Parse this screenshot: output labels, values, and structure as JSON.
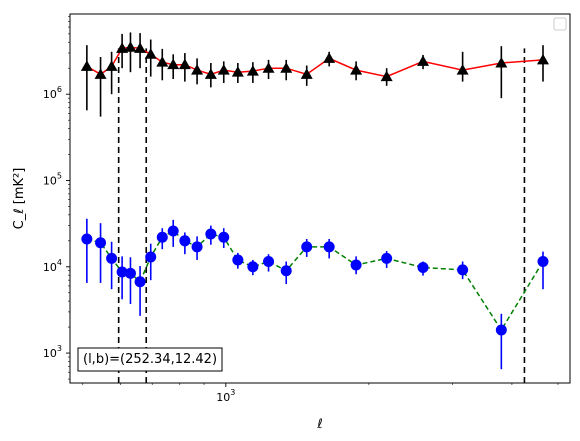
{
  "chart_data": {
    "type": "line",
    "xscale": "log",
    "yscale": "log",
    "xlim": [
      470,
      5300
    ],
    "ylim": [
      450,
      8500000
    ],
    "xlabel": "ℓ",
    "ylabel": "C_ℓ  [mK²]",
    "x_tick_labels": [
      {
        "value": 1000,
        "base": "10",
        "exp": "3"
      }
    ],
    "y_tick_labels": [
      {
        "value": 1000,
        "base": "10",
        "exp": "3"
      },
      {
        "value": 10000,
        "base": "10",
        "exp": "4"
      },
      {
        "value": 100000,
        "base": "10",
        "exp": "5"
      },
      {
        "value": 1000000,
        "base": "10",
        "exp": "6"
      }
    ],
    "legend": {
      "position": "top-right",
      "entries": []
    },
    "annotation": "(l,b)=(252.34,12.42)",
    "vlines": [
      {
        "x": 595,
        "style": "dashed"
      },
      {
        "x": 680,
        "style": "dashed"
      },
      {
        "x": 4250,
        "style": "dashed"
      }
    ],
    "series": [
      {
        "color": "#ff0000",
        "linestyle": "solid",
        "marker": "triangle",
        "marker_color": "#000000",
        "errbar_color": "#000000",
        "x": [
          510,
          545,
          575,
          605,
          630,
          660,
          695,
          735,
          775,
          820,
          870,
          930,
          990,
          1060,
          1140,
          1230,
          1340,
          1480,
          1650,
          1880,
          2180,
          2600,
          3150,
          3800,
          4650
        ],
        "y": [
          2100000,
          1700000,
          2100000,
          3400000,
          3500000,
          3400000,
          2900000,
          2350000,
          2200000,
          2200000,
          1900000,
          1700000,
          1900000,
          1800000,
          1850000,
          2000000,
          2000000,
          1700000,
          2600000,
          1900000,
          1600000,
          2400000,
          1900000,
          2300000,
          2500000
        ],
        "err_low": [
          1450000,
          1150000,
          1100000,
          1400000,
          1700000,
          1400000,
          1300000,
          900000,
          700000,
          800000,
          600000,
          500000,
          550000,
          450000,
          500000,
          500000,
          550000,
          450000,
          500000,
          450000,
          350000,
          450000,
          500000,
          1400000,
          1100000
        ],
        "err_high": [
          1600000,
          1000000,
          1000000,
          1600000,
          1700000,
          1700000,
          1400000,
          1000000,
          700000,
          800000,
          700000,
          600000,
          500000,
          500000,
          500000,
          500000,
          500000,
          450000,
          500000,
          500000,
          400000,
          450000,
          1200000,
          1300000,
          1200000
        ]
      },
      {
        "color": "#008000",
        "linestyle": "dashed",
        "marker": "circle",
        "marker_color": "#0000ff",
        "errbar_color": "#0000ff",
        "x": [
          510,
          545,
          575,
          605,
          630,
          660,
          695,
          735,
          775,
          820,
          870,
          930,
          990,
          1060,
          1140,
          1230,
          1340,
          1480,
          1650,
          1880,
          2180,
          2600,
          3150,
          3800,
          4650
        ],
        "y": [
          21000,
          19000,
          12500,
          8700,
          8400,
          6700,
          13000,
          22000,
          26000,
          20000,
          17000,
          24000,
          22000,
          12000,
          10000,
          11500,
          9000,
          17000,
          17000,
          10500,
          12500,
          9800,
          9200,
          1850,
          11500
        ],
        "err_low": [
          14500,
          12500,
          7000,
          4500,
          4700,
          4000,
          6000,
          6000,
          9000,
          6000,
          5000,
          6000,
          5500,
          2500,
          2000,
          2700,
          2700,
          4000,
          4500,
          2300,
          2800,
          1900,
          2000,
          1200,
          6000
        ],
        "err_high": [
          15000,
          13000,
          7000,
          4500,
          4500,
          3500,
          5500,
          6000,
          9000,
          5000,
          5500,
          6000,
          6000,
          2500,
          2000,
          2500,
          2500,
          4000,
          4000,
          2700,
          2700,
          1700,
          2300,
          1000,
          3500
        ]
      }
    ]
  }
}
